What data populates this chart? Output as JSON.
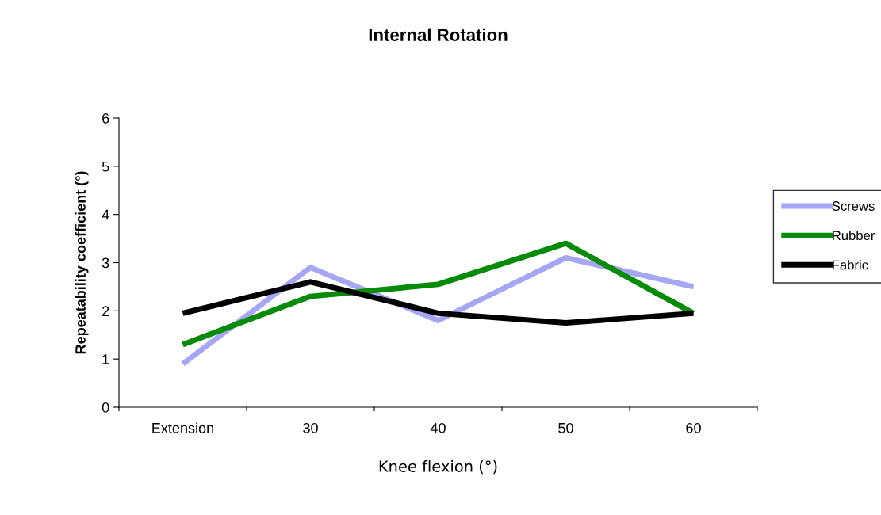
{
  "chart_data": {
    "type": "line",
    "title": "Internal Rotation",
    "xlabel": "Knee flexion (°)",
    "ylabel": "Repeatability coefficient (°)",
    "categories": [
      "Extension",
      "30",
      "40",
      "50",
      "60"
    ],
    "series": [
      {
        "name": "Screws",
        "color": "#a6a6f2",
        "values": [
          0.9,
          2.9,
          1.8,
          3.1,
          2.5
        ]
      },
      {
        "name": "Rubber",
        "color": "#078a07",
        "values": [
          1.3,
          2.3,
          2.55,
          3.4,
          1.95
        ]
      },
      {
        "name": "Fabric",
        "color": "#000000",
        "values": [
          1.95,
          2.6,
          1.95,
          1.75,
          1.95
        ]
      }
    ],
    "ylim": [
      0,
      6
    ],
    "yticks": [
      0,
      1,
      2,
      3,
      4,
      5,
      6
    ],
    "grid": false,
    "legend": "right",
    "marker": "none",
    "line_style": "solid"
  }
}
